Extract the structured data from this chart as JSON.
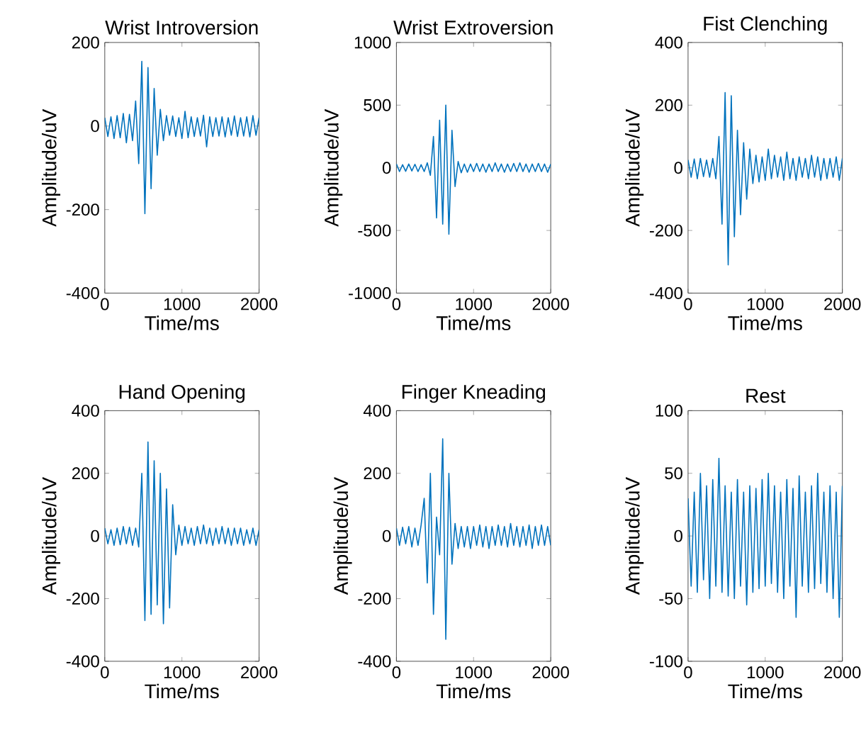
{
  "chart_data": [
    {
      "type": "line",
      "title": "Wrist Introversion",
      "xlabel": "Time/ms",
      "ylabel": "Amplitude/uV",
      "xlim": [
        0,
        2000
      ],
      "ylim": [
        -400,
        200
      ],
      "xticks": [
        0,
        1000,
        2000
      ],
      "yticks": [
        -400,
        -200,
        0,
        200
      ],
      "color": "#0072bd",
      "x": [
        0,
        40,
        80,
        120,
        160,
        200,
        240,
        280,
        320,
        360,
        400,
        440,
        480,
        520,
        560,
        600,
        640,
        680,
        720,
        760,
        800,
        840,
        880,
        920,
        960,
        1000,
        1040,
        1080,
        1120,
        1160,
        1200,
        1240,
        1280,
        1320,
        1360,
        1400,
        1440,
        1480,
        1520,
        1560,
        1600,
        1640,
        1680,
        1720,
        1760,
        1800,
        1840,
        1880,
        1920,
        1960,
        2000
      ],
      "values": [
        20,
        -25,
        22,
        -30,
        25,
        -28,
        30,
        -40,
        28,
        -35,
        60,
        -90,
        155,
        -210,
        140,
        -150,
        90,
        -70,
        40,
        -35,
        25,
        -22,
        24,
        -25,
        20,
        -30,
        35,
        -28,
        22,
        -25,
        20,
        -24,
        26,
        -50,
        22,
        -25,
        20,
        -24,
        22,
        -26,
        20,
        -22,
        24,
        -25,
        20,
        -24,
        22,
        -26,
        25,
        -22,
        20
      ]
    },
    {
      "type": "line",
      "title": "Wrist Extroversion",
      "xlabel": "Time/ms",
      "ylabel": "Amplitude/uV",
      "xlim": [
        0,
        2000
      ],
      "ylim": [
        -1000,
        1000
      ],
      "xticks": [
        0,
        1000,
        2000
      ],
      "yticks": [
        -1000,
        -500,
        0,
        500,
        1000
      ],
      "color": "#0072bd",
      "x": [
        0,
        40,
        80,
        120,
        160,
        200,
        240,
        280,
        320,
        360,
        400,
        440,
        480,
        520,
        560,
        600,
        640,
        680,
        720,
        760,
        800,
        840,
        880,
        920,
        960,
        1000,
        1040,
        1080,
        1120,
        1160,
        1200,
        1240,
        1280,
        1320,
        1360,
        1400,
        1440,
        1480,
        1520,
        1560,
        1600,
        1640,
        1680,
        1720,
        1760,
        1800,
        1840,
        1880,
        1920,
        1960,
        2000
      ],
      "values": [
        30,
        -30,
        25,
        -28,
        30,
        -25,
        28,
        -30,
        25,
        -30,
        40,
        -60,
        250,
        -400,
        380,
        -450,
        500,
        -530,
        300,
        -150,
        50,
        -40,
        30,
        -35,
        30,
        -30,
        35,
        -30,
        30,
        -35,
        30,
        -30,
        40,
        -30,
        30,
        -35,
        30,
        -30,
        35,
        -30,
        40,
        -30,
        30,
        -35,
        30,
        -30,
        35,
        -30,
        30,
        -35,
        30
      ]
    },
    {
      "type": "line",
      "title": "Fist Clenching",
      "xlabel": "Time/ms",
      "ylabel": "Amplitude/uV",
      "xlim": [
        0,
        2000
      ],
      "ylim": [
        -400,
        400
      ],
      "xticks": [
        0,
        1000,
        2000
      ],
      "yticks": [
        -400,
        -200,
        0,
        200,
        400
      ],
      "color": "#0072bd",
      "x": [
        0,
        40,
        80,
        120,
        160,
        200,
        240,
        280,
        320,
        360,
        400,
        440,
        480,
        520,
        560,
        600,
        640,
        680,
        720,
        760,
        800,
        840,
        880,
        920,
        960,
        1000,
        1040,
        1080,
        1120,
        1160,
        1200,
        1240,
        1280,
        1320,
        1360,
        1400,
        1440,
        1480,
        1520,
        1560,
        1600,
        1640,
        1680,
        1720,
        1760,
        1800,
        1840,
        1880,
        1920,
        1960,
        2000
      ],
      "values": [
        25,
        -30,
        28,
        -35,
        30,
        -28,
        25,
        -30,
        30,
        -35,
        100,
        -180,
        240,
        -310,
        230,
        -220,
        120,
        -150,
        80,
        -100,
        60,
        -50,
        40,
        -45,
        35,
        -40,
        60,
        -35,
        40,
        -30,
        35,
        -40,
        50,
        -35,
        30,
        -40,
        35,
        -30,
        30,
        -35,
        40,
        -30,
        35,
        -40,
        30,
        -35,
        30,
        -30,
        35,
        -40,
        30
      ]
    },
    {
      "type": "line",
      "title": "Hand Opening",
      "xlabel": "Time/ms",
      "ylabel": "Amplitude/uV",
      "xlim": [
        0,
        2000
      ],
      "ylim": [
        -400,
        400
      ],
      "xticks": [
        0,
        1000,
        2000
      ],
      "yticks": [
        -400,
        -200,
        0,
        200,
        400
      ],
      "color": "#0072bd",
      "x": [
        0,
        40,
        80,
        120,
        160,
        200,
        240,
        280,
        320,
        360,
        400,
        440,
        480,
        520,
        560,
        600,
        640,
        680,
        720,
        760,
        800,
        840,
        880,
        920,
        960,
        1000,
        1040,
        1080,
        1120,
        1160,
        1200,
        1240,
        1280,
        1320,
        1360,
        1400,
        1440,
        1480,
        1520,
        1560,
        1600,
        1640,
        1680,
        1720,
        1760,
        1800,
        1840,
        1880,
        1920,
        1960,
        2000
      ],
      "values": [
        25,
        -25,
        20,
        -30,
        25,
        -28,
        30,
        -25,
        28,
        -30,
        25,
        -35,
        200,
        -270,
        300,
        -250,
        240,
        -220,
        200,
        -280,
        150,
        -230,
        100,
        -60,
        35,
        -30,
        30,
        -25,
        25,
        -30,
        30,
        -25,
        35,
        -25,
        25,
        -30,
        25,
        -25,
        30,
        -25,
        25,
        -30,
        25,
        -25,
        25,
        -30,
        20,
        -25,
        25,
        -30,
        20
      ]
    },
    {
      "type": "line",
      "title": "Finger Kneading",
      "xlabel": "Time/ms",
      "ylabel": "Amplitude/uV",
      "xlim": [
        0,
        2000
      ],
      "ylim": [
        -400,
        400
      ],
      "xticks": [
        0,
        1000,
        2000
      ],
      "yticks": [
        -400,
        -200,
        0,
        200,
        400
      ],
      "color": "#0072bd",
      "x": [
        0,
        40,
        80,
        120,
        160,
        200,
        240,
        280,
        320,
        360,
        400,
        440,
        480,
        520,
        560,
        600,
        640,
        680,
        720,
        760,
        800,
        840,
        880,
        920,
        960,
        1000,
        1040,
        1080,
        1120,
        1160,
        1200,
        1240,
        1280,
        1320,
        1360,
        1400,
        1440,
        1480,
        1520,
        1560,
        1600,
        1640,
        1680,
        1720,
        1760,
        1800,
        1840,
        1880,
        1920,
        1960,
        2000
      ],
      "values": [
        25,
        -30,
        28,
        -25,
        30,
        -35,
        25,
        -30,
        35,
        120,
        -150,
        200,
        -250,
        60,
        -60,
        310,
        -330,
        200,
        -90,
        40,
        -40,
        30,
        -35,
        30,
        -40,
        30,
        -30,
        35,
        -35,
        30,
        -40,
        30,
        -30,
        35,
        -30,
        30,
        -35,
        40,
        -30,
        30,
        -35,
        30,
        -30,
        35,
        -40,
        30,
        -30,
        35,
        -30,
        30,
        -30
      ]
    },
    {
      "type": "line",
      "title": "Rest",
      "xlabel": "Time/ms",
      "ylabel": "Amplitude/uV",
      "xlim": [
        0,
        2000
      ],
      "ylim": [
        -100,
        100
      ],
      "xticks": [
        0,
        1000,
        2000
      ],
      "yticks": [
        -100,
        -50,
        0,
        50,
        100
      ],
      "color": "#0072bd",
      "x": [
        0,
        40,
        80,
        120,
        160,
        200,
        240,
        280,
        320,
        360,
        400,
        440,
        480,
        520,
        560,
        600,
        640,
        680,
        720,
        760,
        800,
        840,
        880,
        920,
        960,
        1000,
        1040,
        1080,
        1120,
        1160,
        1200,
        1240,
        1280,
        1320,
        1360,
        1400,
        1440,
        1480,
        1520,
        1560,
        1600,
        1640,
        1680,
        1720,
        1760,
        1800,
        1840,
        1880,
        1920,
        1960,
        2000
      ],
      "values": [
        30,
        -40,
        35,
        -45,
        50,
        -35,
        40,
        -50,
        45,
        -40,
        62,
        -45,
        40,
        -48,
        35,
        -50,
        45,
        -40,
        35,
        -55,
        40,
        -45,
        38,
        -42,
        45,
        -40,
        50,
        -38,
        40,
        -45,
        35,
        -50,
        45,
        -40,
        38,
        -65,
        48,
        -40,
        35,
        -45,
        40,
        -42,
        50,
        -38,
        35,
        -45,
        40,
        -50,
        35,
        -65,
        40
      ]
    }
  ]
}
